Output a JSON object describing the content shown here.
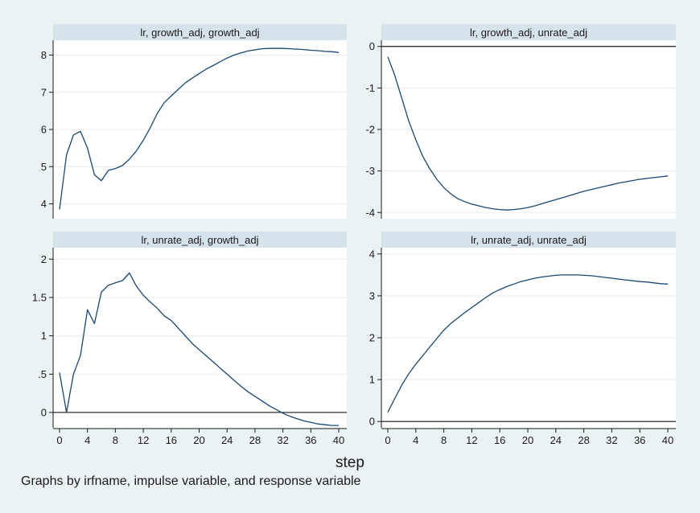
{
  "figure": {
    "xlabel": "step",
    "note": "Graphs by irfname, impulse variable, and response variable"
  },
  "chart_data": [
    {
      "type": "line",
      "title": "lr, growth_adj, growth_adj",
      "xlim": [
        0,
        40
      ],
      "ylim": [
        3.6,
        8.4
      ],
      "yticks": [
        4,
        5,
        6,
        7,
        8
      ],
      "yticklabels": [
        "4",
        "5",
        "6",
        "7",
        "8"
      ],
      "xticks": [],
      "xticklabels": [],
      "zero_line": false,
      "series": [
        {
          "x": [
            0,
            1,
            2,
            3,
            4,
            5,
            6,
            7,
            8,
            9,
            10,
            11,
            12,
            13,
            14,
            15,
            16,
            17,
            18,
            19,
            20,
            21,
            22,
            23,
            24,
            25,
            26,
            27,
            28,
            29,
            30,
            31,
            32,
            33,
            34,
            35,
            36,
            37,
            38,
            39,
            40
          ],
          "y": [
            3.85,
            5.32,
            5.85,
            5.95,
            5.5,
            4.78,
            4.62,
            4.9,
            4.95,
            5.03,
            5.2,
            5.42,
            5.71,
            6.05,
            6.43,
            6.72,
            6.9,
            7.08,
            7.25,
            7.38,
            7.5,
            7.62,
            7.72,
            7.82,
            7.92,
            8.0,
            8.06,
            8.11,
            8.14,
            8.17,
            8.18,
            8.18,
            8.18,
            8.17,
            8.16,
            8.15,
            8.13,
            8.12,
            8.1,
            8.09,
            8.07
          ]
        }
      ]
    },
    {
      "type": "line",
      "title": "lr, growth_adj, unrate_adj",
      "xlim": [
        0,
        40
      ],
      "ylim": [
        -4.15,
        0.15
      ],
      "yticks": [
        -4,
        -3,
        -2,
        -1,
        0
      ],
      "yticklabels": [
        "-4",
        "-3",
        "-2",
        "-1",
        "0"
      ],
      "xticks": [],
      "xticklabels": [],
      "zero_line": true,
      "series": [
        {
          "x": [
            0,
            1,
            2,
            3,
            4,
            5,
            6,
            7,
            8,
            9,
            10,
            11,
            12,
            13,
            14,
            15,
            16,
            17,
            18,
            19,
            20,
            21,
            22,
            23,
            24,
            25,
            26,
            27,
            28,
            29,
            30,
            31,
            32,
            33,
            34,
            35,
            36,
            37,
            38,
            39,
            40
          ],
          "y": [
            -0.25,
            -0.7,
            -1.25,
            -1.8,
            -2.25,
            -2.65,
            -2.95,
            -3.2,
            -3.4,
            -3.55,
            -3.67,
            -3.74,
            -3.8,
            -3.84,
            -3.88,
            -3.91,
            -3.93,
            -3.94,
            -3.93,
            -3.91,
            -3.88,
            -3.84,
            -3.79,
            -3.74,
            -3.69,
            -3.64,
            -3.59,
            -3.54,
            -3.49,
            -3.45,
            -3.41,
            -3.37,
            -3.33,
            -3.29,
            -3.26,
            -3.23,
            -3.2,
            -3.18,
            -3.16,
            -3.14,
            -3.12
          ]
        }
      ]
    },
    {
      "type": "line",
      "title": "lr, unrate_adj, growth_adj",
      "xlim": [
        0,
        40
      ],
      "ylim": [
        -0.2,
        2.15
      ],
      "yticks": [
        0,
        0.5,
        1,
        1.5,
        2
      ],
      "yticklabels": [
        "0",
        ".5",
        "1",
        "1.5",
        "2"
      ],
      "xticks": [
        0,
        4,
        8,
        12,
        16,
        20,
        24,
        28,
        32,
        36,
        40
      ],
      "xticklabels": [
        "0",
        "4",
        "8",
        "12",
        "16",
        "20",
        "24",
        "28",
        "32",
        "36",
        "40"
      ],
      "zero_line": true,
      "series": [
        {
          "x": [
            0,
            1,
            2,
            3,
            4,
            5,
            6,
            7,
            8,
            9,
            10,
            11,
            12,
            13,
            14,
            15,
            16,
            17,
            18,
            19,
            20,
            21,
            22,
            23,
            24,
            25,
            26,
            27,
            28,
            29,
            30,
            31,
            32,
            33,
            34,
            35,
            36,
            37,
            38,
            39,
            40
          ],
          "y": [
            0.52,
            0.0,
            0.5,
            0.74,
            1.34,
            1.16,
            1.57,
            1.66,
            1.69,
            1.72,
            1.82,
            1.65,
            1.53,
            1.44,
            1.36,
            1.26,
            1.2,
            1.1,
            1.0,
            0.9,
            0.82,
            0.74,
            0.66,
            0.58,
            0.5,
            0.42,
            0.34,
            0.27,
            0.21,
            0.15,
            0.09,
            0.04,
            -0.01,
            -0.05,
            -0.08,
            -0.11,
            -0.13,
            -0.15,
            -0.16,
            -0.17,
            -0.17
          ]
        }
      ]
    },
    {
      "type": "line",
      "title": "lr, unrate_adj, unrate_adj",
      "xlim": [
        0,
        40
      ],
      "ylim": [
        -0.15,
        4.15
      ],
      "yticks": [
        0,
        1,
        2,
        3,
        4
      ],
      "yticklabels": [
        "0",
        "1",
        "2",
        "3",
        "4"
      ],
      "xticks": [
        0,
        4,
        8,
        12,
        16,
        20,
        24,
        28,
        32,
        36,
        40
      ],
      "xticklabels": [
        "0",
        "4",
        "8",
        "12",
        "16",
        "20",
        "24",
        "28",
        "32",
        "36",
        "40"
      ],
      "zero_line": true,
      "series": [
        {
          "x": [
            0,
            1,
            2,
            3,
            4,
            5,
            6,
            7,
            8,
            9,
            10,
            11,
            12,
            13,
            14,
            15,
            16,
            17,
            18,
            19,
            20,
            21,
            22,
            23,
            24,
            25,
            26,
            27,
            28,
            29,
            30,
            31,
            32,
            33,
            34,
            35,
            36,
            37,
            38,
            39,
            40
          ],
          "y": [
            0.22,
            0.55,
            0.87,
            1.14,
            1.37,
            1.57,
            1.78,
            1.98,
            2.18,
            2.34,
            2.47,
            2.6,
            2.72,
            2.84,
            2.96,
            3.07,
            3.15,
            3.22,
            3.28,
            3.34,
            3.38,
            3.42,
            3.45,
            3.47,
            3.49,
            3.5,
            3.5,
            3.5,
            3.49,
            3.48,
            3.46,
            3.44,
            3.42,
            3.4,
            3.38,
            3.36,
            3.34,
            3.33,
            3.31,
            3.29,
            3.28
          ]
        }
      ]
    }
  ]
}
